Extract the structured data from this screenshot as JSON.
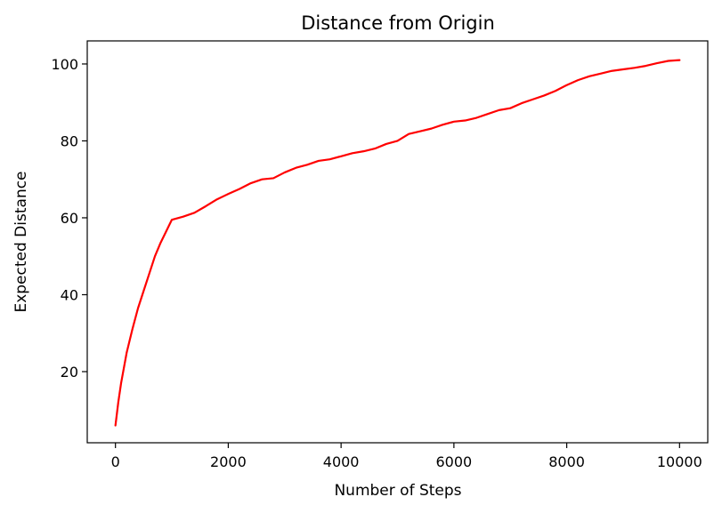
{
  "chart_data": {
    "type": "line",
    "title": "Distance from Origin",
    "xlabel": "Number of Steps",
    "ylabel": "Expected Distance",
    "xlim": [
      -500,
      10500
    ],
    "ylim": [
      1.5,
      106
    ],
    "x_ticks": [
      0,
      2000,
      4000,
      6000,
      8000,
      10000
    ],
    "y_ticks": [
      20,
      40,
      60,
      80,
      100
    ],
    "grid": false,
    "series": [
      {
        "color": "#ff0000",
        "x": [
          0,
          50,
          100,
          200,
          300,
          400,
          500,
          600,
          700,
          800,
          900,
          1000,
          1200,
          1400,
          1600,
          1800,
          2000,
          2200,
          2400,
          2600,
          2800,
          3000,
          3200,
          3400,
          3600,
          3800,
          4000,
          4200,
          4400,
          4600,
          4800,
          5000,
          5200,
          5400,
          5600,
          5800,
          6000,
          6200,
          6400,
          6600,
          6800,
          7000,
          7200,
          7400,
          7600,
          7800,
          8000,
          8200,
          8400,
          8600,
          8800,
          9000,
          9200,
          9400,
          9600,
          9800,
          10000
        ],
        "y": [
          6,
          12,
          17,
          25,
          31,
          36.5,
          41,
          45.5,
          50,
          53.5,
          56.5,
          59.5,
          60.3,
          61.3,
          63,
          64.8,
          66.2,
          67.5,
          69,
          70,
          70.3,
          71.8,
          73,
          73.8,
          74.8,
          75.2,
          76,
          76.8,
          77.3,
          78,
          79.2,
          80,
          81.8,
          82.5,
          83.2,
          84.2,
          85,
          85.3,
          86,
          87,
          88,
          88.5,
          89.8,
          90.8,
          91.8,
          93,
          94.5,
          95.8,
          96.8,
          97.5,
          98.2,
          98.6,
          99,
          99.5,
          100.2,
          100.8,
          101
        ]
      }
    ]
  }
}
